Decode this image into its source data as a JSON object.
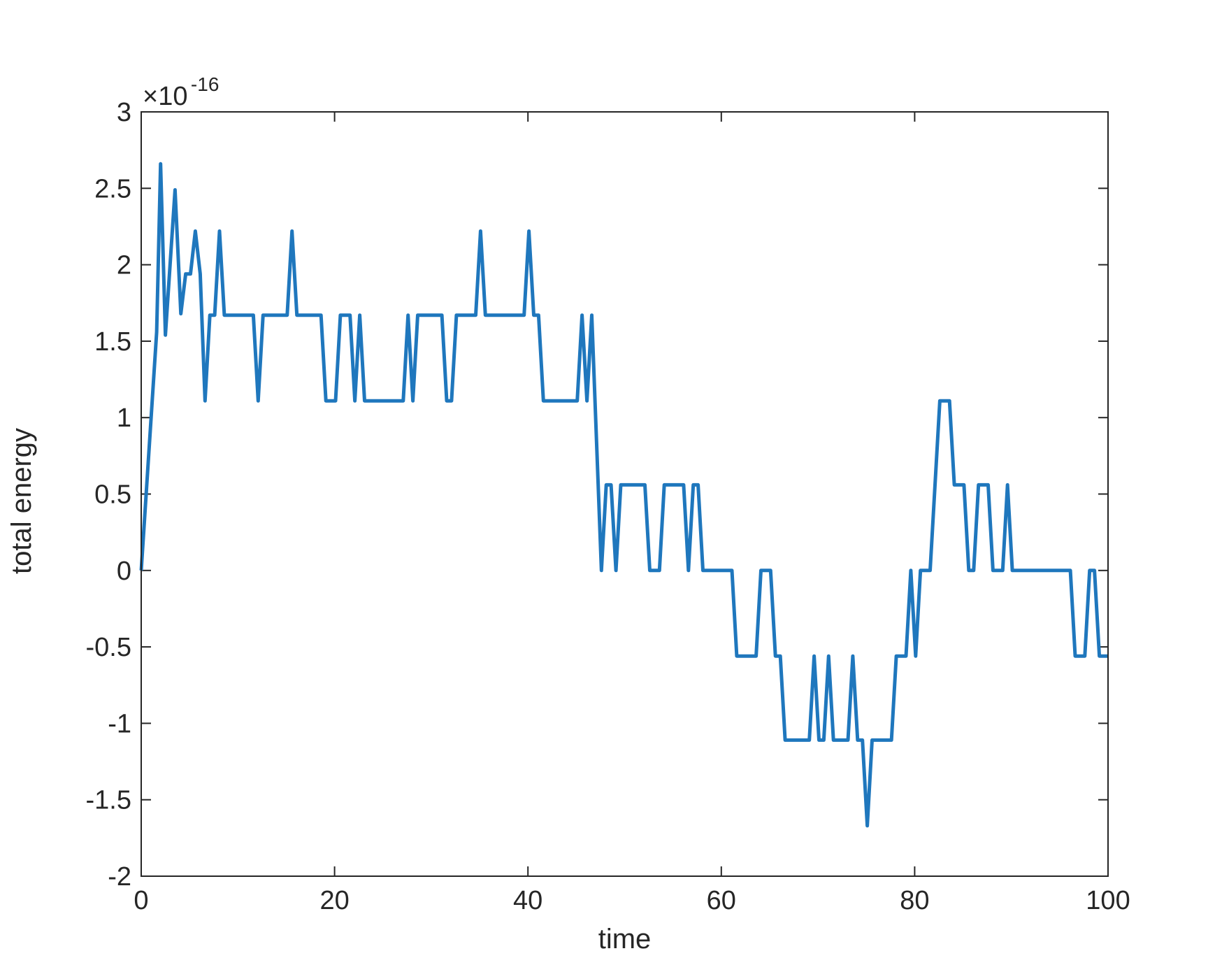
{
  "chart_data": {
    "type": "line",
    "title": "",
    "xlabel": "time",
    "ylabel": "total energy",
    "y_multiplier": {
      "base": "×10",
      "exponent": "-16"
    },
    "xlim": [
      0,
      100
    ],
    "ylim": [
      -2,
      3
    ],
    "x_ticks": [
      0,
      20,
      40,
      60,
      80,
      100
    ],
    "y_ticks": [
      -2,
      -1.5,
      -1,
      -0.5,
      0,
      0.5,
      1,
      1.5,
      2,
      2.5,
      3
    ],
    "x_tick_labels": [
      "0",
      "20",
      "40",
      "60",
      "80",
      "100"
    ],
    "y_tick_labels": [
      "-2",
      "-1.5",
      "-1",
      "-0.5",
      "0",
      "0.5",
      "1",
      "1.5",
      "2",
      "2.5",
      "3"
    ],
    "grid": false,
    "box": true,
    "colors": {
      "line": "#1f77bd",
      "axes": "#262626"
    },
    "series": [
      {
        "x": [
          0,
          1.6,
          2.0,
          2.5,
          3.5,
          4.1,
          4.6,
          5.1,
          5.6,
          6.1,
          6.6,
          7.1,
          7.6,
          8.1,
          8.6,
          11.6,
          12.1,
          12.6,
          15.1,
          15.6,
          16.1,
          18.6,
          19.1,
          20.1,
          20.6,
          21.6,
          22.1,
          22.6,
          23.1,
          27.1,
          27.6,
          28.1,
          28.6,
          31.1,
          31.6,
          32.1,
          32.6,
          34.6,
          35.1,
          35.6,
          39.6,
          40.1,
          40.6,
          41.1,
          41.6,
          42.1,
          45.1,
          45.6,
          46.1,
          46.6,
          47.6,
          48.1,
          48.6,
          49.1,
          49.6,
          50.1,
          52.1,
          52.6,
          53.6,
          54.1,
          56.1,
          56.6,
          57.1,
          57.6,
          58.1,
          61.1,
          61.6,
          63.6,
          64.1,
          65.1,
          65.6,
          66.1,
          66.6,
          69.1,
          69.6,
          70.1,
          70.6,
          71.1,
          71.6,
          73.1,
          73.6,
          74.1,
          74.6,
          75.1,
          75.6,
          77.6,
          78.1,
          79.1,
          79.6,
          80.1,
          80.6,
          81.6,
          82.6,
          83.6,
          84.1,
          85.1,
          85.6,
          86.1,
          86.6,
          87.6,
          88.1,
          89.1,
          89.6,
          90.1,
          96.1,
          96.6,
          97.6,
          98.1,
          98.6,
          99.1,
          100
        ],
        "y": [
          0,
          1.56,
          2.66,
          1.54,
          2.49,
          1.68,
          1.94,
          1.94,
          2.22,
          1.94,
          1.11,
          1.67,
          1.67,
          2.22,
          1.67,
          1.67,
          1.11,
          1.67,
          1.67,
          2.22,
          1.67,
          1.67,
          1.11,
          1.11,
          1.67,
          1.67,
          1.11,
          1.67,
          1.11,
          1.11,
          1.67,
          1.11,
          1.67,
          1.67,
          1.11,
          1.11,
          1.67,
          1.67,
          2.22,
          1.67,
          1.67,
          2.22,
          1.67,
          1.67,
          1.11,
          1.11,
          1.11,
          1.67,
          1.11,
          1.67,
          0,
          0.56,
          0.56,
          0,
          0.56,
          0.56,
          0.56,
          0,
          0,
          0.56,
          0.56,
          0,
          0.56,
          0.56,
          0,
          0,
          -0.56,
          -0.56,
          0,
          0,
          -0.56,
          -0.56,
          -1.11,
          -1.11,
          -0.56,
          -1.11,
          -1.11,
          -0.56,
          -1.11,
          -1.11,
          -0.56,
          -1.11,
          -1.11,
          -1.67,
          -1.11,
          -1.11,
          -0.56,
          -0.56,
          0,
          -0.56,
          0,
          0,
          1.11,
          1.11,
          0.56,
          0.56,
          0,
          0,
          0.56,
          0.56,
          0,
          0,
          0.56,
          0,
          0,
          -0.56,
          -0.56,
          0,
          0,
          -0.56,
          -0.56
        ]
      }
    ]
  }
}
